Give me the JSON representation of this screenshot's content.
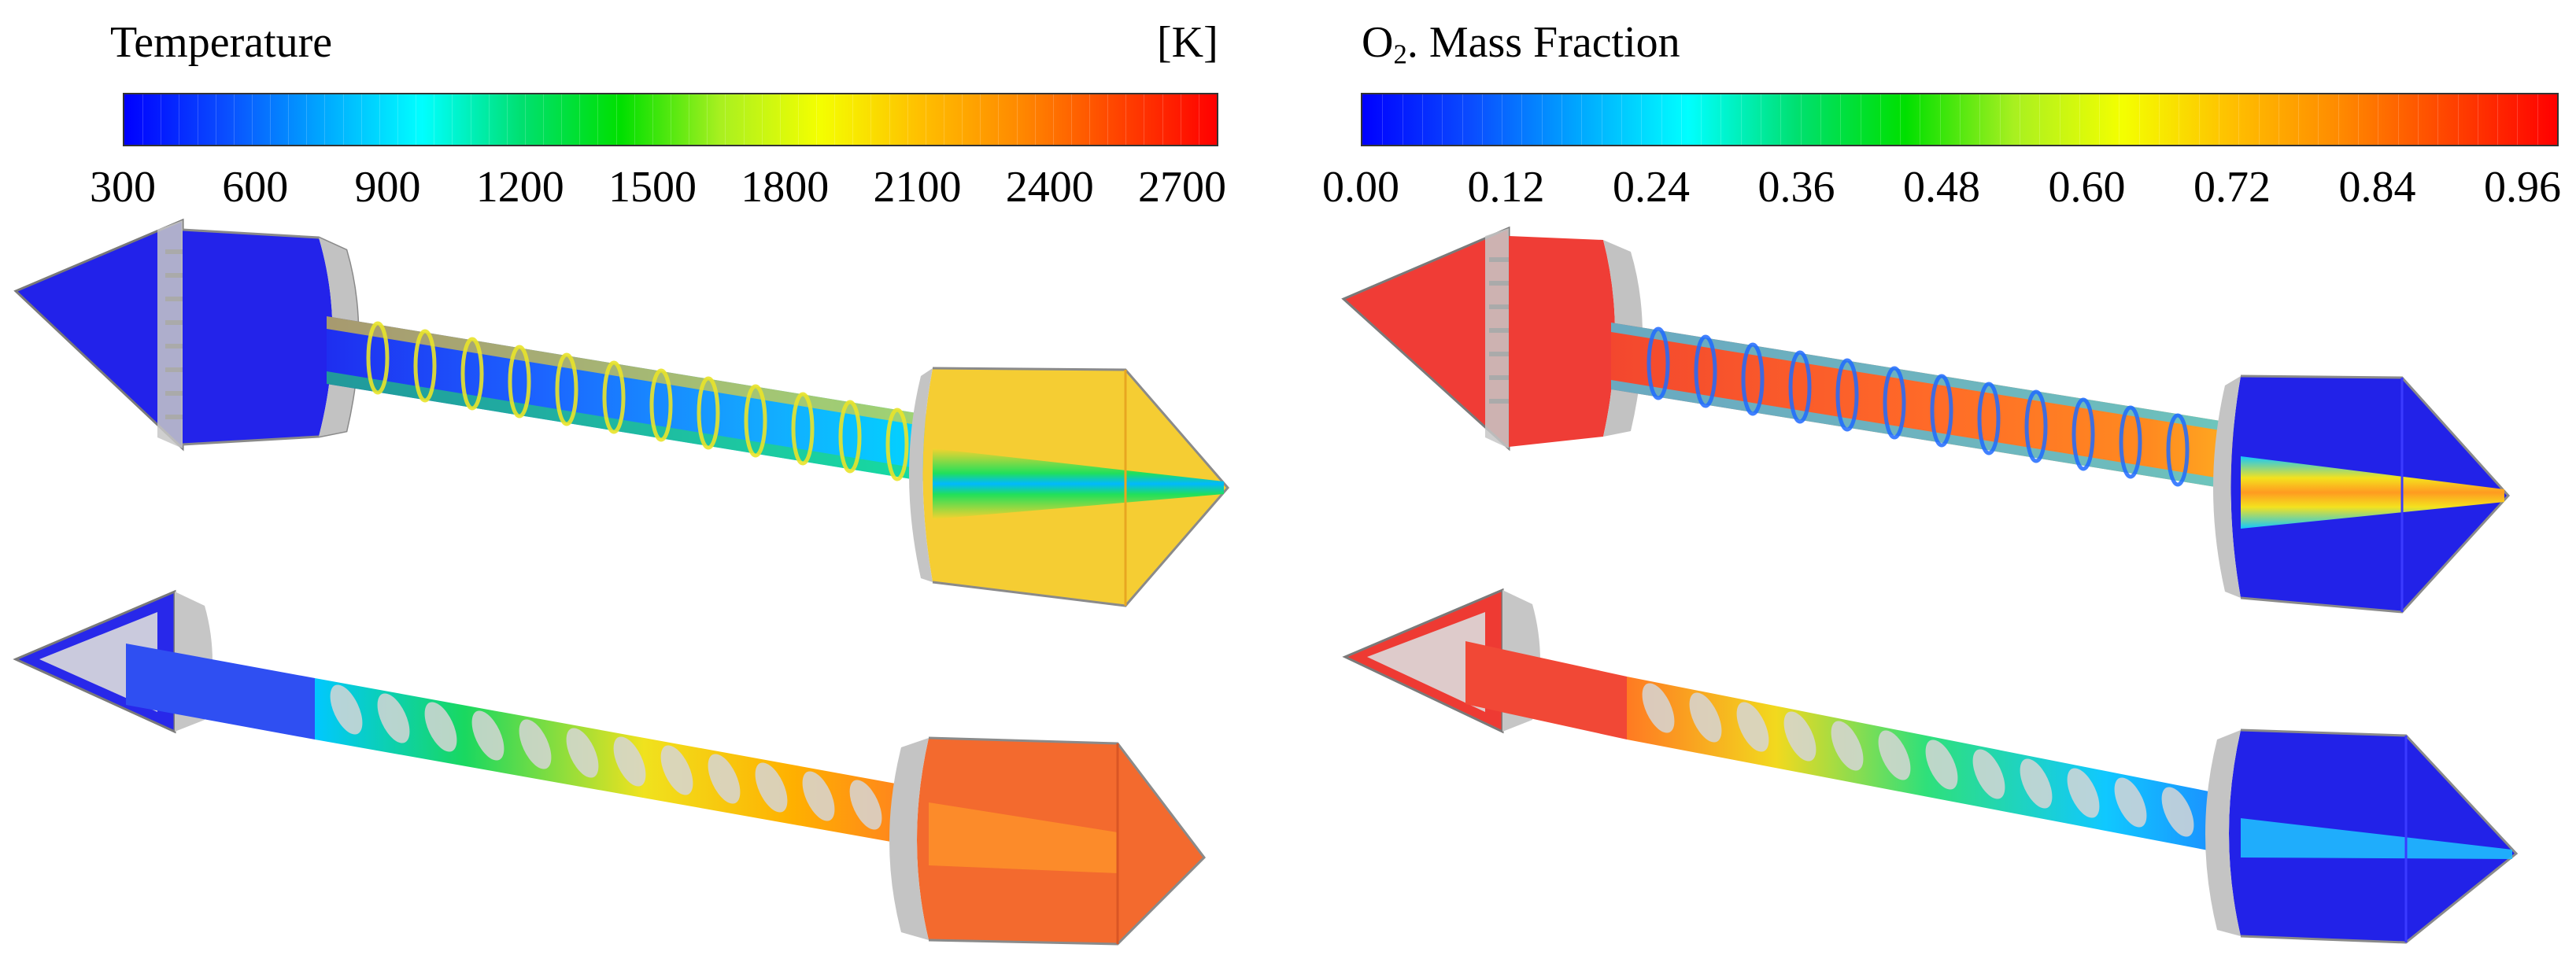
{
  "left_panel": {
    "title": "Temperature",
    "unit": "[K]",
    "ticks": [
      "300",
      "600",
      "900",
      "1200",
      "1500",
      "1800",
      "2100",
      "2400",
      "2700"
    ]
  },
  "right_panel": {
    "title_prefix": "O",
    "title_sub": "2",
    "title_suffix": ". Mass Fraction",
    "ticks": [
      "0.00",
      "0.12",
      "0.24",
      "0.36",
      "0.48",
      "0.60",
      "0.72",
      "0.84",
      "0.96"
    ]
  },
  "colormap": [
    "#0000ff",
    "#0a4cff",
    "#00a8ff",
    "#00ffff",
    "#00e070",
    "#00e000",
    "#a8f020",
    "#f4ff00",
    "#ffc000",
    "#ff8a00",
    "#ff4400",
    "#ff0000"
  ],
  "colors": {
    "shell_gray": "#bdbdbd",
    "deep_blue": "#1f1fe6",
    "red": "#f23a34",
    "yellow": "#f6cc2c",
    "orange": "#f26a2a"
  }
}
